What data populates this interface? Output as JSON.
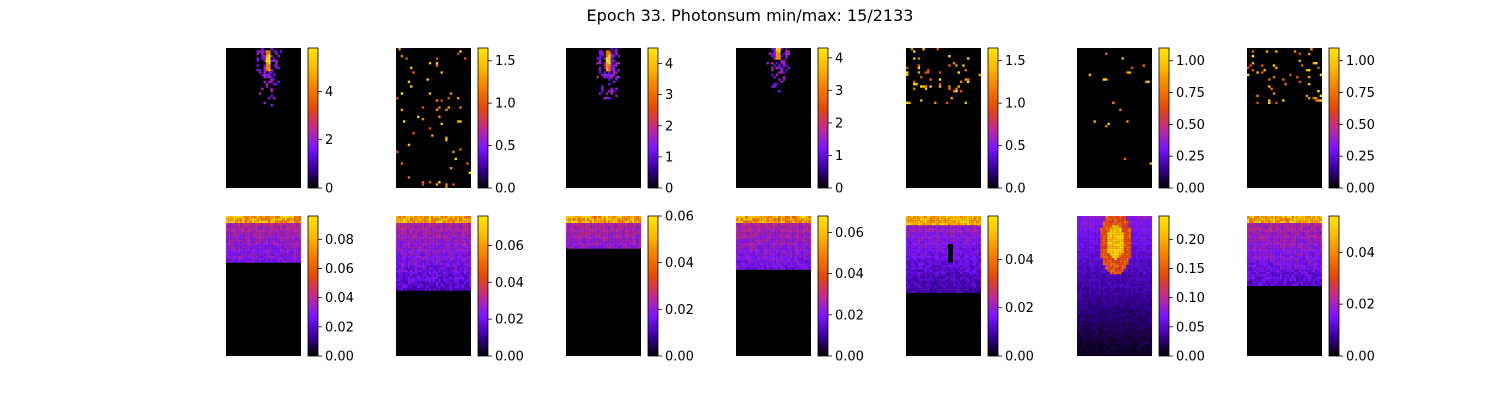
{
  "title": "Epoch 33. Photonsum min/max: 15/2133",
  "colormap": [
    "#000000",
    "#3a009c",
    "#7a16ff",
    "#c12c8a",
    "#e4480a",
    "#f57d00",
    "#fcb800",
    "#ffe60e"
  ],
  "chart_data": {
    "type": "heatmap",
    "title": "Epoch 33. Photonsum min/max: 15/2133",
    "grid": false,
    "panels": [
      {
        "row": 1,
        "col": 1,
        "pattern": "peak",
        "peak_x": 0.55,
        "peak_y": 0.08,
        "vmin": 0,
        "vmax": 5.8,
        "ticks": [
          0,
          2,
          4
        ],
        "tick_labels": [
          "0",
          "2",
          "4"
        ]
      },
      {
        "row": 1,
        "col": 2,
        "pattern": "sparse",
        "vmin": 0,
        "vmax": 1.65,
        "ticks": [
          0.0,
          0.5,
          1.0,
          1.5
        ],
        "tick_labels": [
          "0.0",
          "0.5",
          "1.0",
          "1.5"
        ]
      },
      {
        "row": 1,
        "col": 3,
        "pattern": "peak",
        "peak_x": 0.55,
        "peak_y": 0.08,
        "vmin": 0,
        "vmax": 4.5,
        "ticks": [
          0,
          1,
          2,
          3,
          4
        ],
        "tick_labels": [
          "0",
          "1",
          "2",
          "3",
          "4"
        ]
      },
      {
        "row": 1,
        "col": 4,
        "pattern": "peak",
        "peak_x": 0.55,
        "peak_y": 0.0,
        "vmin": 0,
        "vmax": 4.3,
        "ticks": [
          0,
          1,
          2,
          3,
          4
        ],
        "tick_labels": [
          "0",
          "1",
          "2",
          "3",
          "4"
        ]
      },
      {
        "row": 1,
        "col": 5,
        "pattern": "sparse_top",
        "vmin": 0,
        "vmax": 1.65,
        "ticks": [
          0.0,
          0.5,
          1.0,
          1.5
        ],
        "tick_labels": [
          "0.0",
          "0.5",
          "1.0",
          "1.5"
        ]
      },
      {
        "row": 1,
        "col": 6,
        "pattern": "very_sparse",
        "vmin": 0,
        "vmax": 1.1,
        "ticks": [
          0.0,
          0.25,
          0.5,
          0.75,
          1.0
        ],
        "tick_labels": [
          "0.00",
          "0.25",
          "0.50",
          "0.75",
          "1.00"
        ]
      },
      {
        "row": 1,
        "col": 7,
        "pattern": "sparse_top",
        "vmin": 0,
        "vmax": 1.1,
        "ticks": [
          0.0,
          0.25,
          0.5,
          0.75,
          1.0
        ],
        "tick_labels": [
          "0.00",
          "0.25",
          "0.50",
          "0.75",
          "1.00"
        ]
      },
      {
        "row": 2,
        "col": 1,
        "pattern": "band",
        "band_depth": 0.32,
        "vmin": 0,
        "vmax": 0.096,
        "ticks": [
          0.0,
          0.02,
          0.04,
          0.06,
          0.08
        ],
        "tick_labels": [
          "0.00",
          "0.02",
          "0.04",
          "0.06",
          "0.08"
        ]
      },
      {
        "row": 2,
        "col": 2,
        "pattern": "band",
        "band_depth": 0.52,
        "vmin": 0,
        "vmax": 0.076,
        "ticks": [
          0.0,
          0.02,
          0.04,
          0.06
        ],
        "tick_labels": [
          "0.00",
          "0.02",
          "0.04",
          "0.06"
        ]
      },
      {
        "row": 2,
        "col": 3,
        "pattern": "band",
        "band_depth": 0.22,
        "vmin": 0,
        "vmax": 0.06,
        "ticks": [
          0.0,
          0.02,
          0.04,
          0.06
        ],
        "tick_labels": [
          "0.00",
          "0.02",
          "0.04",
          "0.06"
        ]
      },
      {
        "row": 2,
        "col": 4,
        "pattern": "band",
        "band_depth": 0.38,
        "vmin": 0,
        "vmax": 0.068,
        "ticks": [
          0.0,
          0.02,
          0.04,
          0.06
        ],
        "tick_labels": [
          "0.00",
          "0.02",
          "0.04",
          "0.06"
        ]
      },
      {
        "row": 2,
        "col": 5,
        "pattern": "hole",
        "band_depth": 0.55,
        "vmin": 0,
        "vmax": 0.058,
        "ticks": [
          0.0,
          0.02,
          0.04
        ],
        "tick_labels": [
          "0.00",
          "0.02",
          "0.04"
        ]
      },
      {
        "row": 2,
        "col": 6,
        "pattern": "blob",
        "band_depth": 1.0,
        "vmin": 0,
        "vmax": 0.24,
        "ticks": [
          0.0,
          0.05,
          0.1,
          0.15,
          0.2
        ],
        "tick_labels": [
          "0.00",
          "0.05",
          "0.10",
          "0.15",
          "0.20"
        ]
      },
      {
        "row": 2,
        "col": 7,
        "pattern": "band",
        "band_depth": 0.5,
        "vmin": 0,
        "vmax": 0.054,
        "ticks": [
          0.0,
          0.02,
          0.04
        ],
        "tick_labels": [
          "0.00",
          "0.02",
          "0.04"
        ]
      }
    ]
  }
}
